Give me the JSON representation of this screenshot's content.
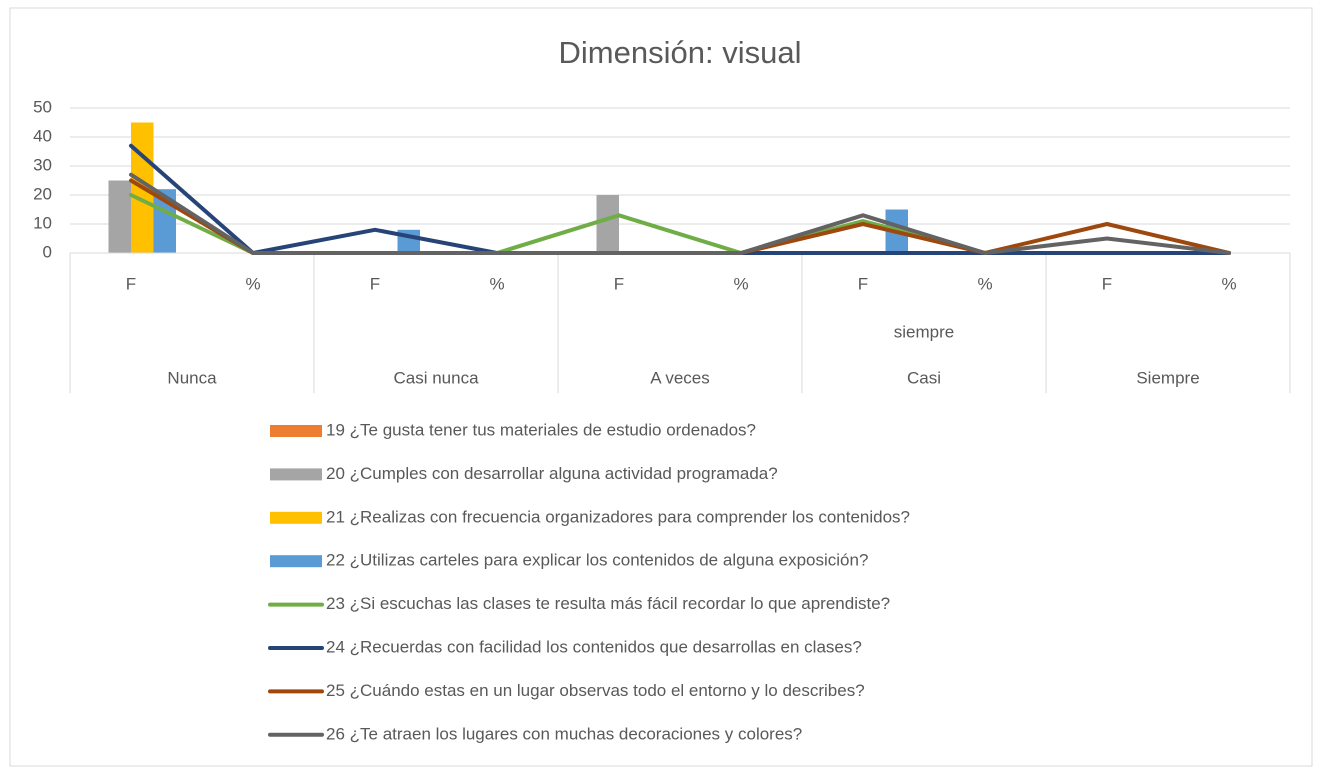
{
  "chart_data": {
    "type": "combo",
    "title": "Dimensión: visual",
    "categories": [
      "F",
      "%",
      "F",
      "%",
      "F",
      "%",
      "F",
      "%",
      "F",
      "%"
    ],
    "groups": [
      "Nunca",
      "Casi nunca",
      "A veces",
      "Casi",
      "Siempre"
    ],
    "annotations": [
      "siempre"
    ],
    "ylim": [
      0,
      50
    ],
    "yticks": [
      0,
      10,
      20,
      30,
      40,
      50
    ],
    "grid": true,
    "legend": "bottom",
    "series": [
      {
        "name": "19 ¿Te gusta tener tus materiales de estudio ordenados?",
        "type": "bar",
        "color": "#ed7d31",
        "values": [
          0,
          0,
          0,
          0,
          0,
          0,
          0,
          0,
          0,
          0
        ]
      },
      {
        "name": "20 ¿Cumples con desarrollar alguna actividad programada?",
        "type": "bar",
        "color": "#a5a5a5",
        "values": [
          25,
          0,
          0,
          0,
          20,
          0,
          0,
          0,
          0,
          0
        ]
      },
      {
        "name": "21 ¿Realizas con frecuencia organizadores para comprender los contenidos?",
        "type": "bar",
        "color": "#ffc000",
        "values": [
          45,
          0,
          0,
          0,
          0,
          0,
          0,
          0,
          0,
          0
        ]
      },
      {
        "name": "22 ¿Utilizas carteles para explicar los contenidos de alguna exposición?",
        "type": "bar",
        "color": "#5b9bd5",
        "values": [
          22,
          0,
          8,
          0,
          0,
          0,
          15,
          0,
          0,
          0
        ]
      },
      {
        "name": "23 ¿Si escuchas las clases te resulta más fácil recordar lo que aprendiste?",
        "type": "line",
        "color": "#70ad47",
        "values": [
          20,
          0,
          0,
          0,
          13,
          0,
          11,
          0,
          0,
          0
        ]
      },
      {
        "name": "24 ¿Recuerdas con facilidad los contenidos que desarrollas en clases?",
        "type": "line",
        "color": "#264478",
        "values": [
          37,
          0,
          8,
          0,
          0,
          0,
          0,
          0,
          0,
          0
        ]
      },
      {
        "name": "25 ¿Cuándo estas en un lugar observas todo el entorno y lo describes?",
        "type": "line",
        "color": "#9e480e",
        "values": [
          25,
          0,
          0,
          0,
          0,
          0,
          10,
          0,
          10,
          0
        ]
      },
      {
        "name": "26 ¿Te atraen los lugares con muchas decoraciones y colores?",
        "type": "line",
        "color": "#636363",
        "values": [
          27,
          0,
          0,
          0,
          0,
          0,
          13,
          0,
          5,
          0
        ]
      }
    ]
  }
}
